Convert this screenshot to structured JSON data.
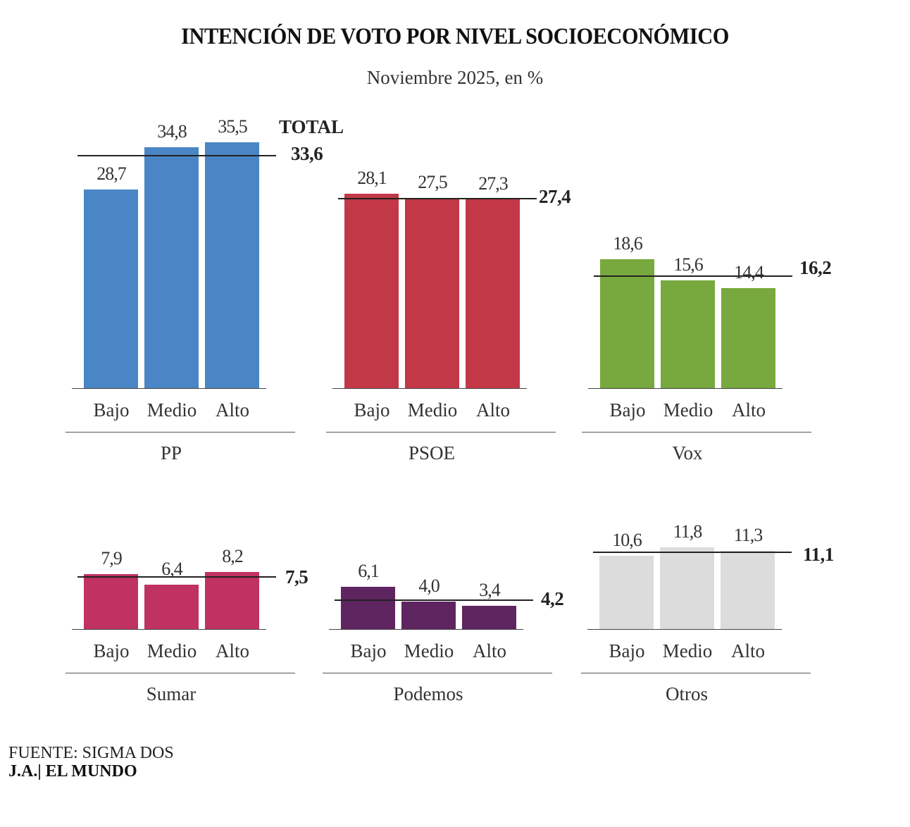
{
  "title": "INTENCIÓN DE VOTO POR NIVEL SOCIOECONÓMICO",
  "subtitle": "Noviembre 2025, en %",
  "source": "FUENTE: SIGMA DOS",
  "credit": "J.A.| EL MUNDO",
  "chart_data": {
    "type": "bar",
    "title": "INTENCIÓN DE VOTO POR NIVEL SOCIOECONÓMICO",
    "subtitle": "Noviembre 2025, en %",
    "categories": [
      "Bajo",
      "Medio",
      "Alto"
    ],
    "total_label": "TOTAL",
    "panels": [
      {
        "party": "PP",
        "color": "#4a86c5",
        "values": [
          28.7,
          34.8,
          35.5
        ],
        "labels": [
          "28,7",
          "34,8",
          "35,5"
        ],
        "total": 33.6,
        "total_label": "33,6"
      },
      {
        "party": "PSOE",
        "color": "#c23847",
        "values": [
          28.1,
          27.5,
          27.3
        ],
        "labels": [
          "28,1",
          "27,5",
          "27,3"
        ],
        "total": 27.4,
        "total_label": "27,4"
      },
      {
        "party": "Vox",
        "color": "#78a93e",
        "values": [
          18.6,
          15.6,
          14.4
        ],
        "labels": [
          "18,6",
          "15,6",
          "14,4"
        ],
        "total": 16.2,
        "total_label": "16,2"
      },
      {
        "party": "Sumar",
        "color": "#c03262",
        "values": [
          7.9,
          6.4,
          8.2
        ],
        "labels": [
          "7,9",
          "6,4",
          "8,2"
        ],
        "total": 7.5,
        "total_label": "7,5"
      },
      {
        "party": "Podemos",
        "color": "#5e2560",
        "values": [
          6.1,
          4.0,
          3.4
        ],
        "labels": [
          "6,1",
          "4,0",
          "3,4"
        ],
        "total": 4.2,
        "total_label": "4,2"
      },
      {
        "party": "Otros",
        "color": "#dcdcdc",
        "values": [
          10.6,
          11.8,
          11.3
        ],
        "labels": [
          "10,6",
          "11,8",
          "11,3"
        ],
        "total": 11.1,
        "total_label": "11,1"
      }
    ]
  }
}
